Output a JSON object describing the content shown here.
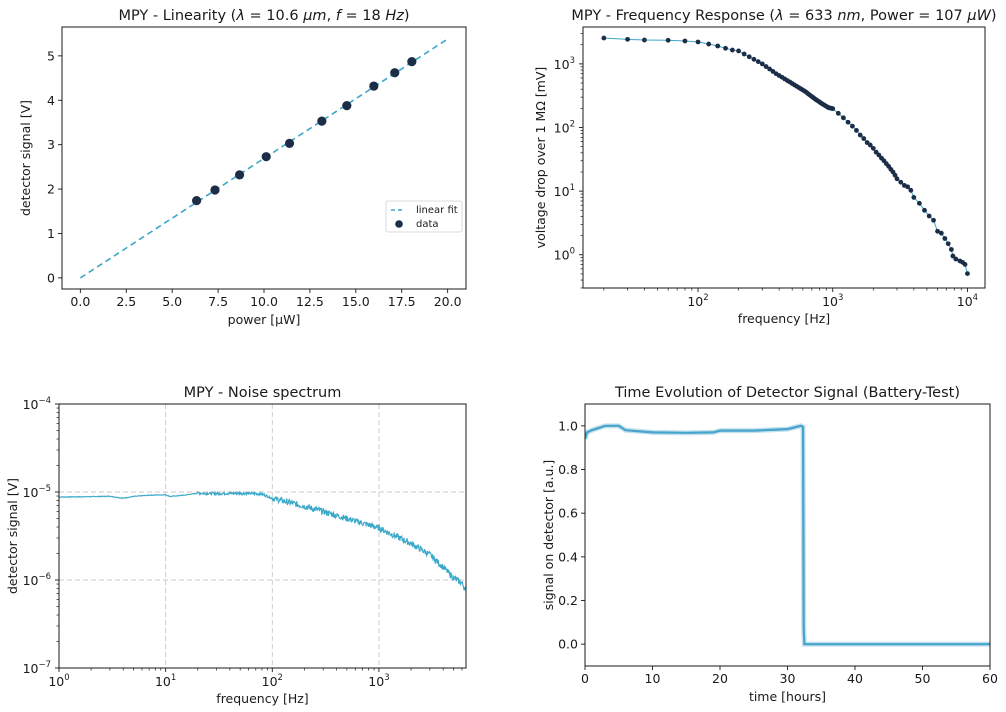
{
  "colors": {
    "accent": "#3aa8c8",
    "marker": "#1c2d48",
    "battery_line": "#45a3cc",
    "grid": "#c8c8c8",
    "axis": "#1a1a1a"
  },
  "chart_data": [
    {
      "id": "linearity",
      "type": "scatter",
      "title_parts": [
        {
          "t": "MPY - Linearity (",
          "i": false
        },
        {
          "t": "λ",
          "i": true
        },
        {
          "t": " = 10.6 ",
          "i": false
        },
        {
          "t": "μm",
          "i": true
        },
        {
          "t": ", ",
          "i": false
        },
        {
          "t": "f",
          "i": true
        },
        {
          "t": " = 18 ",
          "i": false
        },
        {
          "t": "Hz",
          "i": true
        },
        {
          "t": ")",
          "i": false
        }
      ],
      "xlabel": "power [µW]",
      "ylabel": "detector signal [V]",
      "xlim": [
        -1.0,
        21.0
      ],
      "ylim": [
        -0.25,
        5.65
      ],
      "xticks": [
        0.0,
        2.5,
        5.0,
        7.5,
        10.0,
        12.5,
        15.0,
        17.5,
        20.0
      ],
      "xtick_labels": [
        "0.0",
        "2.5",
        "5.0",
        "7.5",
        "10.0",
        "12.5",
        "15.0",
        "17.5",
        "20.0"
      ],
      "yticks": [
        0,
        1,
        2,
        3,
        4,
        5
      ],
      "ytick_labels": [
        "0",
        "1",
        "2",
        "3",
        "4",
        "5"
      ],
      "grid": false,
      "legend": {
        "position": "center-right",
        "entries": [
          "linear fit",
          "data"
        ]
      },
      "series": [
        {
          "name": "linear fit",
          "style": "dashed-line",
          "x": [
            0.0,
            20.0
          ],
          "y": [
            0.0,
            5.38
          ]
        },
        {
          "name": "data",
          "style": "markers",
          "x": [
            6.33,
            7.33,
            8.67,
            10.12,
            11.39,
            13.15,
            14.51,
            15.98,
            17.12,
            18.05
          ],
          "y": [
            1.74,
            1.98,
            2.32,
            2.73,
            3.03,
            3.53,
            3.88,
            4.32,
            4.62,
            4.87
          ]
        }
      ]
    },
    {
      "id": "freqresp",
      "type": "line",
      "title_parts": [
        {
          "t": "MPY - Frequency Response (",
          "i": false
        },
        {
          "t": "λ",
          "i": true
        },
        {
          "t": " = 633 ",
          "i": false
        },
        {
          "t": "nm",
          "i": true
        },
        {
          "t": ", Power = 107 ",
          "i": false
        },
        {
          "t": "μW",
          "i": true
        },
        {
          "t": ")",
          "i": false
        }
      ],
      "xlabel": "frequency [Hz]",
      "ylabel": "voltage drop over 1 MΩ [mV]",
      "xscale": "log",
      "yscale": "log",
      "xlim": [
        14,
        13500
      ],
      "ylim": [
        0.3,
        3800
      ],
      "xticks": [
        100,
        1000,
        10000
      ],
      "xtick_labels": [
        [
          "10",
          "2"
        ],
        [
          "10",
          "3"
        ],
        [
          "10",
          "4"
        ]
      ],
      "yticks": [
        1,
        10,
        100,
        1000
      ],
      "ytick_labels": [
        [
          "10",
          "0"
        ],
        [
          "10",
          "1"
        ],
        [
          "10",
          "2"
        ],
        [
          "10",
          "3"
        ]
      ],
      "grid": false,
      "series": [
        {
          "name": "voltage drop",
          "style": "line-markers",
          "x": [
            20,
            30,
            40,
            60,
            80,
            100,
            120,
            140,
            160,
            180,
            200,
            220,
            240,
            260,
            280,
            300,
            320,
            340,
            360,
            380,
            400,
            420,
            440,
            460,
            480,
            500,
            520,
            540,
            560,
            580,
            600,
            620,
            640,
            660,
            680,
            700,
            720,
            740,
            760,
            780,
            800,
            820,
            840,
            860,
            880,
            900,
            920,
            940,
            960,
            980,
            1000,
            1100,
            1200,
            1300,
            1400,
            1500,
            1600,
            1700,
            1800,
            1900,
            2000,
            2100,
            2200,
            2300,
            2400,
            2500,
            2600,
            2700,
            2800,
            2900,
            3000,
            3200,
            3400,
            3600,
            3800,
            4000,
            4400,
            4800,
            5200,
            5600,
            6000,
            6400,
            6800,
            7200,
            7600,
            7800,
            8200,
            8800,
            9200,
            9600,
            10000
          ],
          "y": [
            2550,
            2430,
            2370,
            2350,
            2290,
            2210,
            2050,
            1910,
            1760,
            1650,
            1600,
            1430,
            1294,
            1180,
            1084,
            1000,
            907,
            830,
            761,
            700,
            656,
            617,
            581,
            547,
            519,
            491,
            467,
            445,
            424,
            406,
            388,
            372,
            355,
            336,
            320,
            306,
            293,
            280,
            270,
            260,
            250,
            242,
            234,
            227,
            220,
            214,
            208,
            204,
            202,
            200,
            198,
            167,
            142,
            121,
            105,
            90,
            76,
            67,
            58,
            53,
            47,
            41,
            37,
            33,
            30,
            27,
            24.5,
            22,
            20,
            17.8,
            15.6,
            13.8,
            12.3,
            11.7,
            10.3,
            7.97,
            6.43,
            4.99,
            4.06,
            3.48,
            2.34,
            2.18,
            1.8,
            1.49,
            1.21,
            0.955,
            0.857,
            0.798,
            0.759,
            0.705,
            0.505
          ]
        }
      ]
    },
    {
      "id": "noise",
      "type": "line",
      "title_parts": [
        {
          "t": "MPY - Noise spectrum",
          "i": false
        }
      ],
      "xlabel": "frequency [Hz]",
      "ylabel": "detector signal [V]",
      "xscale": "log",
      "yscale": "log",
      "xlim": [
        1,
        6550
      ],
      "ylim": [
        1e-07,
        0.0001
      ],
      "xticks": [
        1,
        10,
        100,
        1000
      ],
      "xtick_labels": [
        [
          "10",
          "0"
        ],
        [
          "10",
          "1"
        ],
        [
          "10",
          "2"
        ],
        [
          "10",
          "3"
        ]
      ],
      "yticks": [
        1e-07,
        1e-06,
        1e-05,
        0.0001
      ],
      "ytick_labels": [
        [
          "10",
          "−7"
        ],
        [
          "10",
          "−6"
        ],
        [
          "10",
          "−5"
        ],
        [
          "10",
          "−4"
        ]
      ],
      "grid": true,
      "series": [
        {
          "name": "noise spectrum",
          "style": "noisy-line",
          "x": [
            1,
            2,
            3,
            4,
            5,
            7,
            10,
            11,
            15,
            20,
            30,
            50,
            80,
            100,
            200,
            300,
            500,
            1000,
            2000,
            3000,
            4000,
            5000,
            6000,
            6550
          ],
          "y": [
            8.77e-06,
            8.85e-06,
            8.95e-06,
            8.5e-06,
            8.9e-06,
            9.2e-06,
            9.3e-06,
            8.9e-06,
            9.2e-06,
            9.7e-06,
            9.6e-06,
            9.7e-06,
            9.5e-06,
            8.5e-06,
            6.9e-06,
            6e-06,
            5e-06,
            3.9e-06,
            2.6e-06,
            1.94e-06,
            1.4e-06,
            1.06e-06,
            9.2e-07,
            7.8e-07
          ]
        }
      ]
    },
    {
      "id": "battery",
      "type": "line",
      "title_parts": [
        {
          "t": "Time Evolution of Detector Signal (Battery-Test)",
          "i": false
        }
      ],
      "xlabel": "time [hours]",
      "ylabel": "signal on detector [a.u.]",
      "xlim": [
        0,
        60
      ],
      "ylim": [
        -0.1,
        1.1
      ],
      "xticks": [
        0,
        10,
        20,
        30,
        40,
        50,
        60
      ],
      "xtick_labels": [
        "0",
        "10",
        "20",
        "30",
        "40",
        "50",
        "60"
      ],
      "yticks": [
        0.0,
        0.2,
        0.4,
        0.6,
        0.8,
        1.0
      ],
      "ytick_labels": [
        "0.0",
        "0.2",
        "0.4",
        "0.6",
        "0.8",
        "1.0"
      ],
      "grid": false,
      "series": [
        {
          "name": "signal",
          "style": "thick-line",
          "x": [
            0,
            0.3,
            1,
            2,
            3,
            5,
            6,
            8,
            10,
            15,
            19,
            20,
            25,
            30,
            32,
            32.3,
            32.4,
            32.5,
            60
          ],
          "y": [
            0.94,
            0.97,
            0.98,
            0.99,
            1.0,
            1.0,
            0.98,
            0.975,
            0.97,
            0.968,
            0.97,
            0.978,
            0.978,
            0.985,
            1.0,
            0.995,
            0.07,
            0.0,
            0.0
          ]
        }
      ]
    }
  ]
}
